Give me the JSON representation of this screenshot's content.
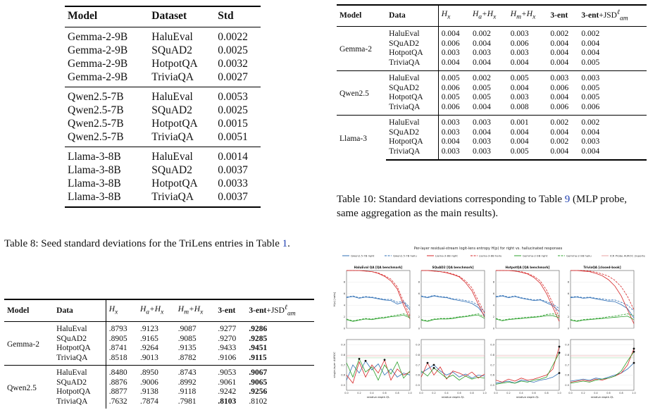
{
  "table8": {
    "headers": [
      "Model",
      "Dataset",
      "Std"
    ],
    "groups": [
      [
        [
          "Gemma-2-9B",
          "HaluEval",
          "0.0022"
        ],
        [
          "Gemma-2-9B",
          "SQuAD2",
          "0.0025"
        ],
        [
          "Gemma-2-9B",
          "HotpotQA",
          "0.0032"
        ],
        [
          "Gemma-2-9B",
          "TriviaQA",
          "0.0027"
        ]
      ],
      [
        [
          "Qwen2.5-7B",
          "HaluEval",
          "0.0053"
        ],
        [
          "Qwen2.5-7B",
          "SQuAD2",
          "0.0025"
        ],
        [
          "Qwen2.5-7B",
          "HotpotQA",
          "0.0015"
        ],
        [
          "Qwen2.5-7B",
          "TriviaQA",
          "0.0051"
        ]
      ],
      [
        [
          "Llama-3-8B",
          "HaluEval",
          "0.0014"
        ],
        [
          "Llama-3-8B",
          "SQuAD2",
          "0.0037"
        ],
        [
          "Llama-3-8B",
          "HotpotQA",
          "0.0033"
        ],
        [
          "Llama-3-8B",
          "TriviaQA",
          "0.0037"
        ]
      ]
    ],
    "caption_text": "Table 8: Seed standard deviations for the TriLens entries in Table ",
    "caption_ref": "1",
    "caption_end": "."
  },
  "table10": {
    "headers": [
      "Model",
      "Data",
      "H_x",
      "H_a+H_x",
      "H_m+H_x",
      "3-ent",
      "3-ent+JSD"
    ],
    "groups": [
      {
        "model": "Gemma-2",
        "rows": [
          [
            "HaluEval",
            "0.004",
            "0.002",
            "0.003",
            "0.002",
            "0.002"
          ],
          [
            "SQuAD2",
            "0.006",
            "0.004",
            "0.006",
            "0.004",
            "0.004"
          ],
          [
            "HotpotQA",
            "0.003",
            "0.003",
            "0.003",
            "0.004",
            "0.004"
          ],
          [
            "TriviaQA",
            "0.004",
            "0.004",
            "0.004",
            "0.004",
            "0.005"
          ]
        ]
      },
      {
        "model": "Qwen2.5",
        "rows": [
          [
            "HaluEval",
            "0.005",
            "0.002",
            "0.005",
            "0.003",
            "0.003"
          ],
          [
            "SQuAD2",
            "0.006",
            "0.005",
            "0.004",
            "0.006",
            "0.005"
          ],
          [
            "HotpotQA",
            "0.005",
            "0.005",
            "0.003",
            "0.004",
            "0.005"
          ],
          [
            "TriviaQA",
            "0.006",
            "0.004",
            "0.008",
            "0.006",
            "0.006"
          ]
        ]
      },
      {
        "model": "Llama-3",
        "rows": [
          [
            "HaluEval",
            "0.003",
            "0.003",
            "0.001",
            "0.002",
            "0.002"
          ],
          [
            "SQuAD2",
            "0.003",
            "0.004",
            "0.004",
            "0.004",
            "0.004"
          ],
          [
            "HotpotQA",
            "0.004",
            "0.003",
            "0.004",
            "0.002",
            "0.003"
          ],
          [
            "TriviaQA",
            "0.003",
            "0.003",
            "0.005",
            "0.004",
            "0.004"
          ]
        ]
      }
    ],
    "caption_text": "Table 10: Standard deviations corresponding to Table ",
    "caption_ref": "9",
    "caption_end": " (MLP probe, same aggregation as the main results)."
  },
  "table9": {
    "headers": [
      "Model",
      "Data",
      "H_x",
      "H_a+H_x",
      "H_m+H_x",
      "3-ent",
      "3-ent+JSD"
    ],
    "groups": [
      {
        "model": "Gemma-2",
        "rows": [
          [
            "HaluEval",
            ".8793",
            ".9123",
            ".9087",
            ".9277",
            ".9286"
          ],
          [
            "SQuAD2",
            ".8905",
            ".9165",
            ".9085",
            ".9270",
            ".9285"
          ],
          [
            "HotpotQA",
            ".8741",
            ".9264",
            ".9135",
            ".9433",
            ".9451"
          ],
          [
            "TriviaQA",
            ".8518",
            ".9013",
            ".8782",
            ".9106",
            ".9115"
          ]
        ]
      },
      {
        "model": "Qwen2.5",
        "rows": [
          [
            "HaluEval",
            ".8480",
            ".8950",
            ".8743",
            ".9053",
            ".9067"
          ],
          [
            "SQuAD2",
            ".8876",
            ".9006",
            ".8992",
            ".9061",
            ".9065"
          ],
          [
            "HotpotQA",
            ".8877",
            ".9138",
            ".9118",
            ".9242",
            ".9256"
          ],
          [
            "TriviaQA",
            ".7632",
            ".7874",
            ".7981",
            ".8103",
            ".8102"
          ]
        ]
      }
    ]
  },
  "figure": {
    "title": "Per-layer residual-stream logit-lens entropy  H(p) for right vs. hallucinated responses",
    "legend": [
      "Qwen2.5-7B  right",
      "Qwen2.5-7B  hallu",
      "Llama-3-8B  right",
      "Llama-3-8B  hallu",
      "Gemma-2-9B  right",
      "Gemma-2-9B  hallu",
      "ICR Probe AUROC (reported)"
    ],
    "colors": {
      "qwen": "#2f6fb5",
      "llama": "#d62728",
      "gemma": "#2ca02c",
      "icr": "#e9a3a3"
    },
    "panel_titles": [
      "HaluEval QA  [QA benchmark]",
      "SQuAD2  [QA benchmark]",
      "HotpotQA  [QA benchmark]",
      "TriviaQA  [closed-book]"
    ],
    "top_ylabel": "H(p)  [nats]",
    "bottom_ylabel": "single-layer AUROC",
    "xlabel": "relative depth  ℓ/L",
    "xticks": [
      "0.0",
      "0.2",
      "0.4",
      "0.6",
      "0.8",
      "1.0"
    ]
  },
  "chart_data": [
    {
      "type": "line",
      "title": "HaluEval QA [QA benchmark]",
      "xlabel": "relative depth ℓ/L",
      "ylabel": "H(p) [nats]",
      "ylim": [
        0,
        10
      ],
      "x": [
        0.0,
        0.1,
        0.2,
        0.3,
        0.4,
        0.5,
        0.6,
        0.7,
        0.8,
        0.9,
        1.0
      ],
      "series": [
        {
          "name": "Qwen2.5-7B right",
          "values": [
            5.3,
            5.5,
            5.2,
            5.4,
            5.3,
            5.1,
            4.9,
            4.8,
            4.2,
            4.5,
            3.2
          ]
        },
        {
          "name": "Qwen2.5-7B hallu",
          "values": [
            5.4,
            5.6,
            5.3,
            5.5,
            5.4,
            5.2,
            5.0,
            5.0,
            4.5,
            4.7,
            3.6
          ]
        },
        {
          "name": "Llama-3-8B right",
          "values": [
            10.0,
            10.0,
            10.0,
            9.9,
            9.8,
            9.5,
            9.0,
            8.2,
            6.8,
            4.0,
            1.6
          ]
        },
        {
          "name": "Llama-3-8B hallu",
          "values": [
            10.0,
            10.0,
            10.0,
            9.9,
            9.8,
            9.6,
            9.1,
            8.5,
            7.2,
            4.6,
            2.2
          ]
        },
        {
          "name": "Gemma-2-9B right",
          "values": [
            1.5,
            1.2,
            1.4,
            1.6,
            1.5,
            1.7,
            1.8,
            2.0,
            2.1,
            2.3,
            1.8
          ]
        },
        {
          "name": "Gemma-2-9B hallu",
          "values": [
            1.6,
            1.3,
            1.5,
            1.7,
            1.6,
            1.8,
            1.9,
            2.1,
            2.3,
            2.5,
            2.1
          ]
        }
      ]
    },
    {
      "type": "line",
      "title": "SQuAD2 [QA benchmark]",
      "xlabel": "relative depth ℓ/L",
      "ylim": [
        0,
        10
      ],
      "x": [
        0.0,
        0.1,
        0.2,
        0.3,
        0.4,
        0.5,
        0.6,
        0.7,
        0.8,
        0.9,
        1.0
      ],
      "series": [
        {
          "name": "Qwen2.5-7B right",
          "values": [
            5.5,
            5.3,
            5.6,
            5.4,
            5.3,
            5.0,
            4.8,
            4.6,
            4.3,
            3.6,
            2.2
          ]
        },
        {
          "name": "Qwen2.5-7B hallu",
          "values": [
            5.6,
            5.4,
            5.7,
            5.5,
            5.4,
            5.1,
            5.0,
            4.8,
            4.6,
            4.0,
            2.8
          ]
        },
        {
          "name": "Llama-3-8B right",
          "values": [
            10.0,
            10.0,
            9.9,
            9.8,
            9.6,
            9.3,
            8.9,
            7.9,
            6.5,
            4.2,
            1.9
          ]
        },
        {
          "name": "Llama-3-8B hallu",
          "values": [
            10.0,
            10.0,
            9.9,
            9.8,
            9.7,
            9.4,
            9.0,
            8.2,
            7.0,
            4.8,
            2.6
          ]
        },
        {
          "name": "Gemma-2-9B right",
          "values": [
            1.4,
            1.2,
            1.5,
            1.6,
            1.6,
            1.7,
            1.9,
            2.0,
            2.2,
            2.3,
            1.7
          ]
        },
        {
          "name": "Gemma-2-9B hallu",
          "values": [
            1.5,
            1.3,
            1.6,
            1.7,
            1.7,
            1.8,
            2.0,
            2.1,
            2.3,
            2.5,
            2.0
          ]
        }
      ]
    },
    {
      "type": "line",
      "title": "HotpotQA [QA benchmark]",
      "xlabel": "relative depth ℓ/L",
      "ylim": [
        0,
        10
      ],
      "x": [
        0.0,
        0.1,
        0.2,
        0.3,
        0.4,
        0.5,
        0.6,
        0.7,
        0.8,
        0.9,
        1.0
      ],
      "series": [
        {
          "name": "Qwen2.5-7B right",
          "values": [
            5.4,
            5.6,
            5.3,
            5.5,
            5.2,
            5.0,
            4.8,
            4.9,
            4.4,
            3.9,
            2.9
          ]
        },
        {
          "name": "Qwen2.5-7B hallu",
          "values": [
            5.5,
            5.7,
            5.4,
            5.6,
            5.3,
            5.1,
            4.9,
            5.0,
            4.6,
            4.2,
            3.4
          ]
        },
        {
          "name": "Llama-3-8B right",
          "values": [
            10.0,
            10.0,
            10.0,
            9.9,
            9.7,
            9.4,
            8.8,
            7.8,
            6.0,
            3.6,
            1.2
          ]
        },
        {
          "name": "Llama-3-8B hallu",
          "values": [
            10.0,
            10.0,
            10.0,
            9.9,
            9.8,
            9.5,
            9.0,
            8.2,
            6.6,
            4.3,
            1.9
          ]
        },
        {
          "name": "Gemma-2-9B right",
          "values": [
            1.6,
            1.3,
            1.5,
            1.6,
            1.7,
            1.8,
            1.9,
            2.0,
            2.2,
            2.2,
            1.8
          ]
        },
        {
          "name": "Gemma-2-9B hallu",
          "values": [
            1.7,
            1.4,
            1.6,
            1.7,
            1.8,
            1.9,
            2.0,
            2.1,
            2.4,
            2.5,
            2.2
          ]
        }
      ]
    },
    {
      "type": "line",
      "title": "TriviaQA [closed-book]",
      "xlabel": "relative depth ℓ/L",
      "ylim": [
        0,
        10
      ],
      "x": [
        0.0,
        0.1,
        0.2,
        0.3,
        0.4,
        0.5,
        0.6,
        0.7,
        0.8,
        0.9,
        1.0
      ],
      "series": [
        {
          "name": "Qwen2.5-7B right",
          "values": [
            5.3,
            5.4,
            5.2,
            5.3,
            5.1,
            4.9,
            4.7,
            4.6,
            4.1,
            3.4,
            1.8
          ]
        },
        {
          "name": "Qwen2.5-7B hallu",
          "values": [
            5.4,
            5.5,
            5.3,
            5.4,
            5.2,
            5.1,
            4.9,
            4.9,
            4.5,
            4.0,
            3.0
          ]
        },
        {
          "name": "Llama-3-8B right",
          "values": [
            10.0,
            10.0,
            9.9,
            9.8,
            9.5,
            9.1,
            8.4,
            7.3,
            5.6,
            3.2,
            0.8
          ]
        },
        {
          "name": "Llama-3-8B hallu",
          "values": [
            10.0,
            10.0,
            10.0,
            9.9,
            9.7,
            9.4,
            9.0,
            8.3,
            7.2,
            5.5,
            3.2
          ]
        },
        {
          "name": "Gemma-2-9B right",
          "values": [
            1.4,
            1.2,
            1.4,
            1.5,
            1.6,
            1.7,
            1.8,
            1.9,
            2.0,
            2.1,
            1.5
          ]
        },
        {
          "name": "Gemma-2-9B hallu",
          "values": [
            1.5,
            1.3,
            1.5,
            1.6,
            1.7,
            1.8,
            2.0,
            2.1,
            2.3,
            2.5,
            2.2
          ]
        }
      ]
    },
    {
      "type": "line",
      "title": "HaluEval QA",
      "ylabel": "single-layer AUROC",
      "ylim": [
        0.45,
        0.95
      ],
      "x": [
        0.0,
        0.1,
        0.2,
        0.3,
        0.4,
        0.5,
        0.6,
        0.7,
        0.8,
        0.9,
        1.0
      ],
      "series": [
        {
          "name": "Qwen2.5-7B",
          "values": [
            0.55,
            0.7,
            0.62,
            0.74,
            0.65,
            0.71,
            0.6,
            0.66,
            0.58,
            0.62,
            0.6
          ]
        },
        {
          "name": "Llama-3-8B",
          "values": [
            0.6,
            0.52,
            0.73,
            0.58,
            0.7,
            0.62,
            0.75,
            0.55,
            0.66,
            0.6,
            0.63
          ]
        },
        {
          "name": "Gemma-2-9B",
          "values": [
            0.72,
            0.58,
            0.76,
            0.63,
            0.68,
            0.55,
            0.7,
            0.61,
            0.73,
            0.57,
            0.64
          ]
        }
      ]
    },
    {
      "type": "line",
      "title": "SQuAD2",
      "ylim": [
        0.45,
        0.95
      ],
      "x": [
        0.0,
        0.1,
        0.2,
        0.3,
        0.4,
        0.5,
        0.6,
        0.7,
        0.8,
        0.9,
        1.0
      ],
      "series": [
        {
          "name": "Qwen2.5-7B",
          "values": [
            0.62,
            0.66,
            0.7,
            0.64,
            0.6,
            0.63,
            0.58,
            0.61,
            0.57,
            0.6,
            0.59
          ]
        },
        {
          "name": "Llama-3-8B",
          "values": [
            0.58,
            0.72,
            0.6,
            0.68,
            0.56,
            0.64,
            0.62,
            0.59,
            0.63,
            0.57,
            0.61
          ]
        },
        {
          "name": "Gemma-2-9B",
          "values": [
            0.64,
            0.59,
            0.67,
            0.62,
            0.57,
            0.6,
            0.55,
            0.59,
            0.56,
            0.58,
            0.57
          ]
        }
      ]
    },
    {
      "type": "line",
      "title": "HotpotQA",
      "ylim": [
        0.45,
        0.95
      ],
      "x": [
        0.0,
        0.1,
        0.2,
        0.3,
        0.4,
        0.5,
        0.6,
        0.7,
        0.8,
        0.9,
        1.0
      ],
      "series": [
        {
          "name": "Qwen2.5-7B",
          "values": [
            0.52,
            0.53,
            0.54,
            0.52,
            0.55,
            0.54,
            0.53,
            0.55,
            0.56,
            0.58,
            0.62
          ]
        },
        {
          "name": "Llama-3-8B",
          "values": [
            0.55,
            0.53,
            0.56,
            0.54,
            0.57,
            0.55,
            0.56,
            0.58,
            0.6,
            0.66,
            0.88
          ]
        },
        {
          "name": "Gemma-2-9B",
          "values": [
            0.51,
            0.52,
            0.53,
            0.52,
            0.54,
            0.53,
            0.55,
            0.56,
            0.58,
            0.7,
            0.82
          ]
        }
      ]
    },
    {
      "type": "line",
      "title": "TriviaQA",
      "ylim": [
        0.45,
        0.95
      ],
      "x": [
        0.0,
        0.1,
        0.2,
        0.3,
        0.4,
        0.5,
        0.6,
        0.7,
        0.8,
        0.9,
        1.0
      ],
      "series": [
        {
          "name": "Qwen2.5-7B",
          "values": [
            0.54,
            0.55,
            0.56,
            0.55,
            0.57,
            0.56,
            0.58,
            0.6,
            0.62,
            0.66,
            0.72
          ]
        },
        {
          "name": "Llama-3-8B",
          "values": [
            0.53,
            0.54,
            0.55,
            0.54,
            0.56,
            0.55,
            0.57,
            0.59,
            0.62,
            0.7,
            0.86
          ]
        },
        {
          "name": "Gemma-2-9B",
          "values": [
            0.52,
            0.53,
            0.54,
            0.53,
            0.55,
            0.56,
            0.57,
            0.59,
            0.64,
            0.74,
            0.83
          ]
        }
      ]
    }
  ]
}
